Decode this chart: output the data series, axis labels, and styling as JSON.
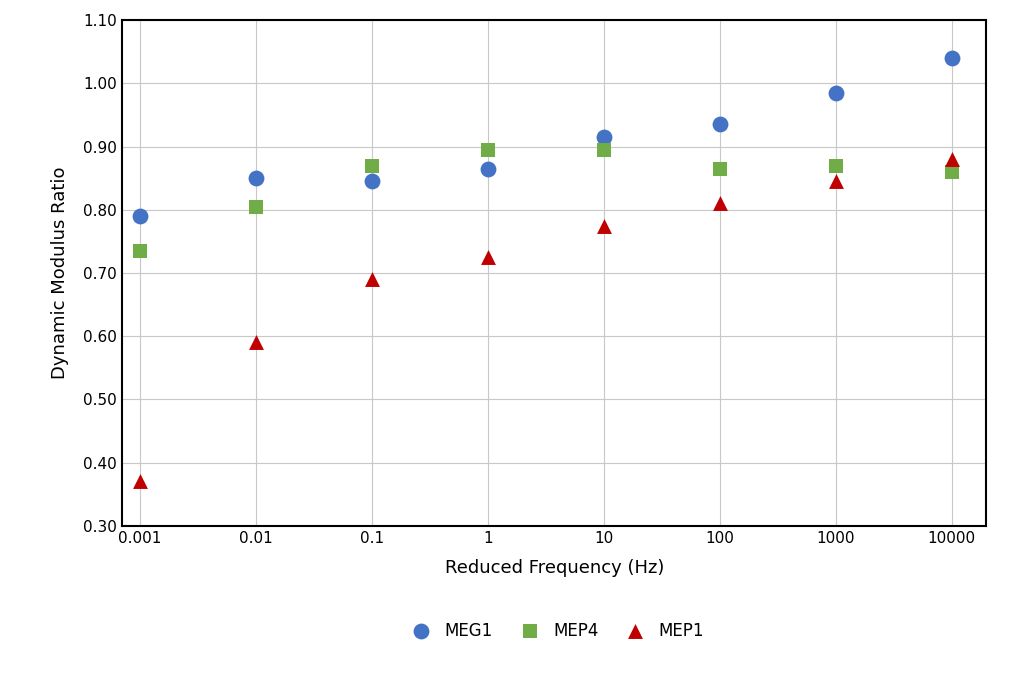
{
  "title": "",
  "xlabel": "Reduced Frequency (Hz)",
  "ylabel": "Dynamic Modulus Ratio",
  "x_values": [
    0.001,
    0.01,
    0.1,
    1,
    10,
    100,
    1000,
    10000
  ],
  "MEG1": [
    0.79,
    0.85,
    0.845,
    0.865,
    0.915,
    0.935,
    0.985,
    1.04
  ],
  "MEP4": [
    0.735,
    0.805,
    0.87,
    0.895,
    0.895,
    0.865,
    0.87,
    0.86
  ],
  "MEP1": [
    0.37,
    0.59,
    0.69,
    0.725,
    0.775,
    0.81,
    0.845,
    0.88
  ],
  "color_MEG1": "#4472C4",
  "color_MEP4": "#70AD47",
  "color_MEP1": "#C00000",
  "ylim": [
    0.3,
    1.1
  ],
  "yticks": [
    0.3,
    0.4,
    0.5,
    0.6,
    0.7,
    0.8,
    0.9,
    1.0,
    1.1
  ],
  "xticks": [
    0.001,
    0.01,
    0.1,
    1,
    10,
    100,
    1000,
    10000
  ],
  "background_color": "#FFFFFF",
  "grid_color": "#C8C8C8",
  "marker_size_circle": 130,
  "marker_size_square": 115,
  "marker_size_triangle": 115,
  "spine_color": "#000000",
  "tick_labelsize": 11,
  "axis_labelsize": 13
}
